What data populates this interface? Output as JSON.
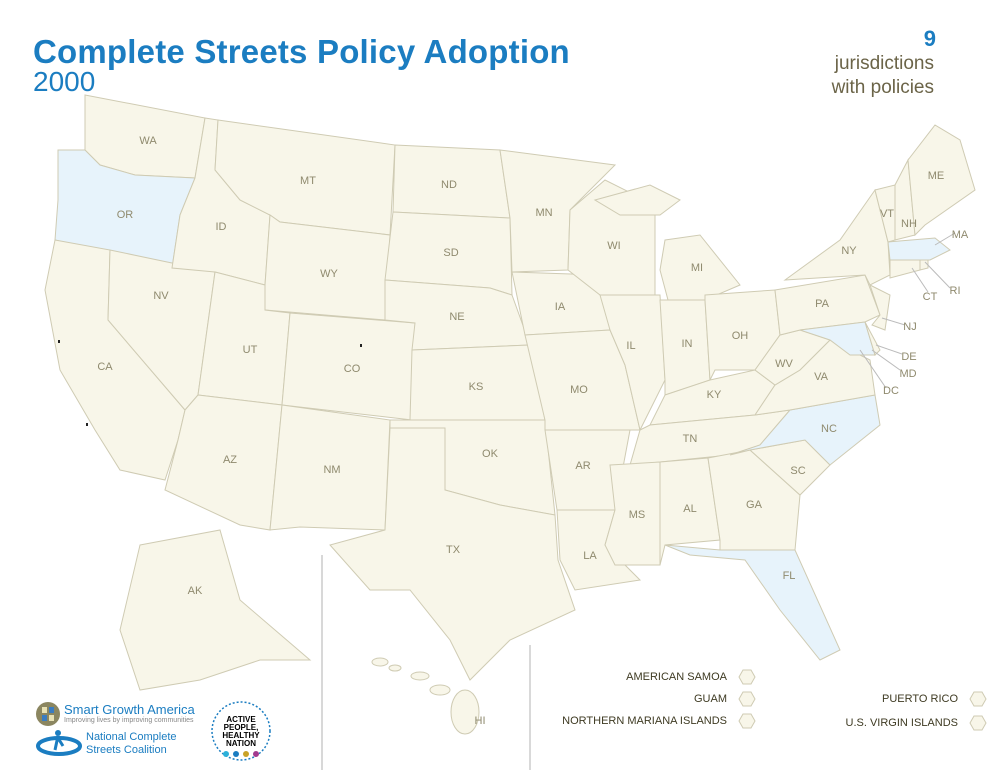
{
  "header": {
    "title": "Complete Streets Policy Adoption",
    "year": "2000"
  },
  "summary": {
    "count": "9",
    "label_line1": "jurisdictions",
    "label_line2": "with policies"
  },
  "colors": {
    "accent": "#1b7dc1",
    "state_fill": "#f8f6e9",
    "policy_fill": "#e7f3fb",
    "border": "#cfcbb3"
  },
  "map": {
    "states": [
      "WA",
      "OR",
      "CA",
      "NV",
      "ID",
      "MT",
      "WY",
      "UT",
      "CO",
      "AZ",
      "NM",
      "ND",
      "SD",
      "NE",
      "KS",
      "OK",
      "TX",
      "MN",
      "IA",
      "MO",
      "AR",
      "LA",
      "WI",
      "IL",
      "MI",
      "IN",
      "OH",
      "KY",
      "TN",
      "MS",
      "AL",
      "GA",
      "FL",
      "SC",
      "NC",
      "VA",
      "WV",
      "PA",
      "NY",
      "MD",
      "DE",
      "NJ",
      "CT",
      "RI",
      "MA",
      "VT",
      "NH",
      "ME",
      "DC",
      "AK",
      "HI"
    ],
    "states_with_policies": [
      "OR",
      "MD",
      "MA",
      "NC",
      "FL"
    ]
  },
  "territories": {
    "left": [
      "AMERICAN SAMOA",
      "GUAM",
      "NORTHERN MARIANA ISLANDS"
    ],
    "right": [
      "PUERTO RICO",
      "U.S. VIRGIN ISLANDS"
    ]
  },
  "logos": {
    "sga_name": "Smart Growth America",
    "sga_tagline": "Improving lives by improving communities",
    "ncsc_line1": "National Complete",
    "ncsc_line2": "Streets Coalition",
    "apn_text": "ACTIVE PEOPLE, HEALTHY NATION"
  }
}
